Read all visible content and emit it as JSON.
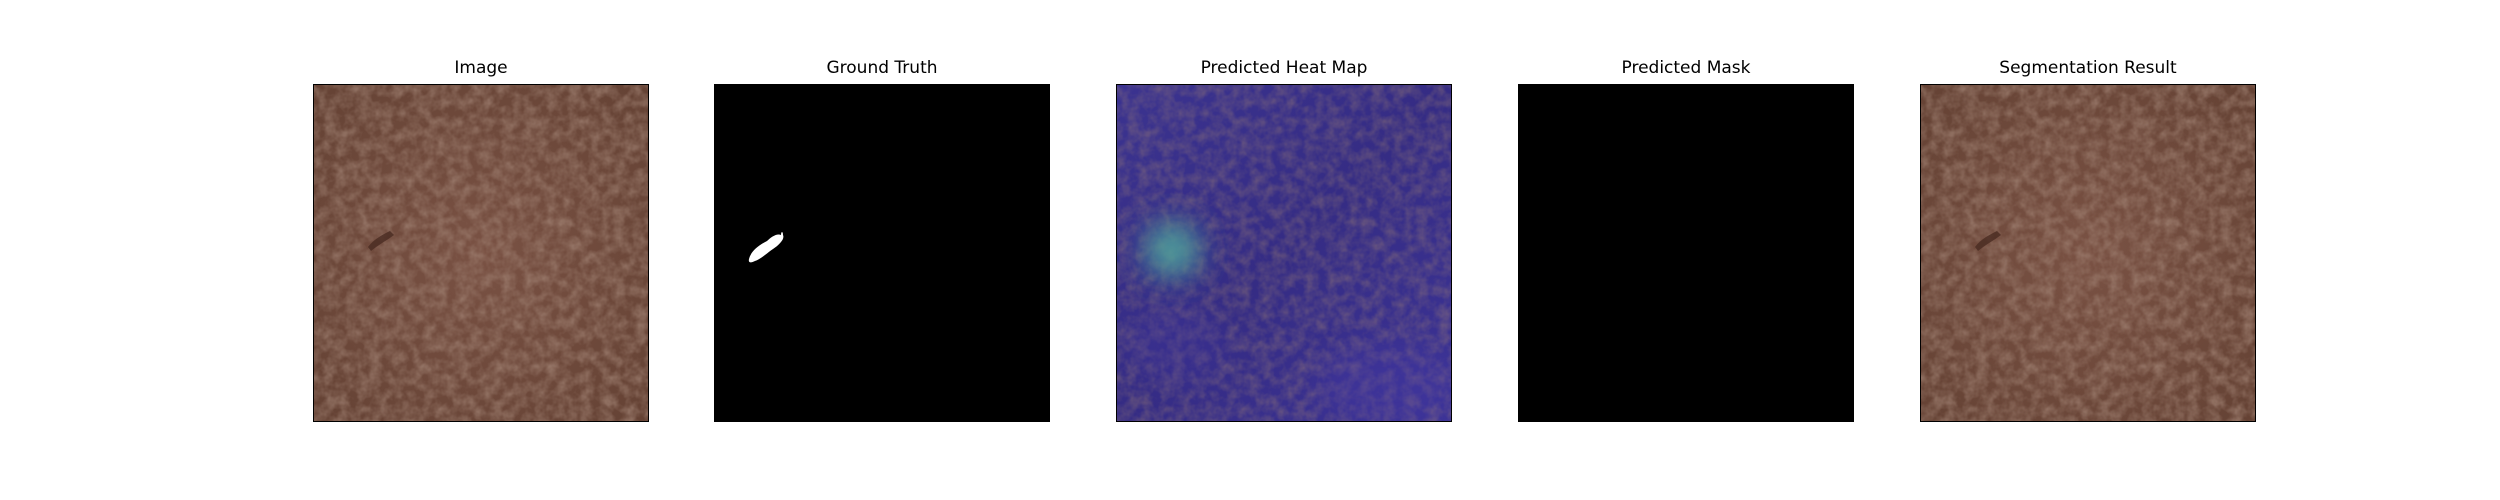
{
  "figure": {
    "panels": [
      {
        "id": "image",
        "title": "Image",
        "type": "rgb-image",
        "content": "leather texture with small dark defect"
      },
      {
        "id": "ground-truth",
        "title": "Ground Truth",
        "type": "binary-mask",
        "content": "white defect region on black"
      },
      {
        "id": "heat-map",
        "title": "Predicted Heat Map",
        "type": "heatmap-overlay",
        "content": "blue overlay with cyan hotspot at defect"
      },
      {
        "id": "predicted-mask",
        "title": "Predicted Mask",
        "type": "binary-mask",
        "content": "all black"
      },
      {
        "id": "segmentation",
        "title": "Segmentation Result",
        "type": "rgb-image",
        "content": "leather texture with defect"
      }
    ],
    "colors": {
      "leather": "#6f4a3d",
      "leather_dark": "#5a3a2f",
      "mask_bg": "#000000",
      "mask_fg": "#ffffff",
      "heat_base": "#3a2f86",
      "heat_hot": "#4fa89a"
    }
  }
}
